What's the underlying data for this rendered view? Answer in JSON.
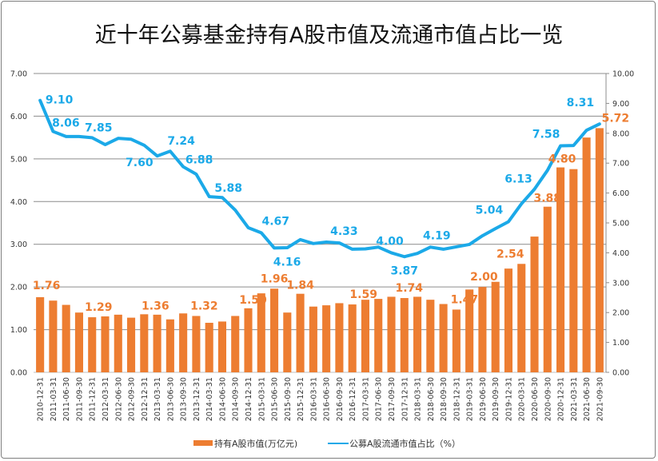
{
  "chart_data": {
    "type": "bar+line",
    "title": "近十年公募基金持有A股市值及流通市值占比一览",
    "categories": [
      "2010-12-31",
      "2011-03-31",
      "2011-06-30",
      "2011-09-30",
      "2011-12-31",
      "2012-03-31",
      "2012-06-30",
      "2012-09-30",
      "2012-12-31",
      "2013-03-31",
      "2013-06-30",
      "2013-09-30",
      "2013-12-31",
      "2014-03-31",
      "2014-06-30",
      "2014-09-30",
      "2014-12-31",
      "2015-03-31",
      "2015-06-30",
      "2015-09-30",
      "2015-12-31",
      "2016-03-31",
      "2016-06-30",
      "2016-09-30",
      "2016-12-31",
      "2017-03-31",
      "2017-06-30",
      "2017-09-30",
      "2017-12-31",
      "2018-03-31",
      "2018-06-30",
      "2018-09-30",
      "2018-12-31",
      "2019-03-31",
      "2019-06-30",
      "2019-09-30",
      "2019-12-31",
      "2020-03-31",
      "2020-06-30",
      "2020-09-30",
      "2020-12-31",
      "2021-03-31",
      "2021-06-30",
      "2021-09-30"
    ],
    "series": [
      {
        "name": "持有A股市值(万亿元)",
        "type": "bar",
        "axis": "left",
        "color": "#ED7D31",
        "values": [
          1.76,
          1.68,
          1.58,
          1.4,
          1.29,
          1.31,
          1.35,
          1.28,
          1.36,
          1.35,
          1.24,
          1.38,
          1.32,
          1.16,
          1.19,
          1.32,
          1.5,
          1.85,
          1.96,
          1.4,
          1.84,
          1.54,
          1.57,
          1.62,
          1.59,
          1.7,
          1.72,
          1.77,
          1.74,
          1.77,
          1.7,
          1.6,
          1.47,
          1.94,
          2.0,
          2.12,
          2.43,
          2.54,
          3.18,
          3.88,
          4.8,
          4.76,
          5.5,
          5.72
        ],
        "labeled_indices": [
          0,
          4,
          8,
          12,
          16,
          18,
          20,
          24,
          28,
          32,
          34,
          37,
          39,
          40,
          43
        ]
      },
      {
        "name": "公募A股流通市值占比（%）",
        "type": "line",
        "axis": "right",
        "color": "#1BA9E8",
        "values": [
          9.1,
          8.06,
          7.89,
          7.89,
          7.85,
          7.62,
          7.83,
          7.8,
          7.6,
          7.24,
          7.4,
          6.88,
          6.63,
          5.88,
          5.85,
          5.43,
          4.84,
          4.67,
          4.16,
          4.17,
          4.44,
          4.31,
          4.36,
          4.33,
          4.12,
          4.13,
          4.19,
          4.0,
          3.87,
          3.98,
          4.19,
          4.12,
          4.2,
          4.28,
          4.57,
          4.81,
          5.04,
          5.64,
          6.13,
          6.76,
          7.58,
          7.59,
          8.1,
          8.31
        ],
        "labeled_indices": [
          0,
          1,
          4,
          8,
          9,
          11,
          13,
          17,
          18,
          23,
          27,
          28,
          30,
          36,
          38,
          40,
          43
        ]
      }
    ],
    "left_axis": {
      "min": 0,
      "max": 7,
      "ticks": [
        "0.00",
        "1.00",
        "2.00",
        "3.00",
        "4.00",
        "5.00",
        "6.00",
        "7.00"
      ]
    },
    "right_axis": {
      "min": 0,
      "max": 10,
      "ticks": [
        "0.00",
        "1.00",
        "2.00",
        "3.00",
        "4.00",
        "5.00",
        "6.00",
        "7.00",
        "8.00",
        "9.00",
        "10.00"
      ]
    },
    "grid": true,
    "legend": "bottom"
  }
}
